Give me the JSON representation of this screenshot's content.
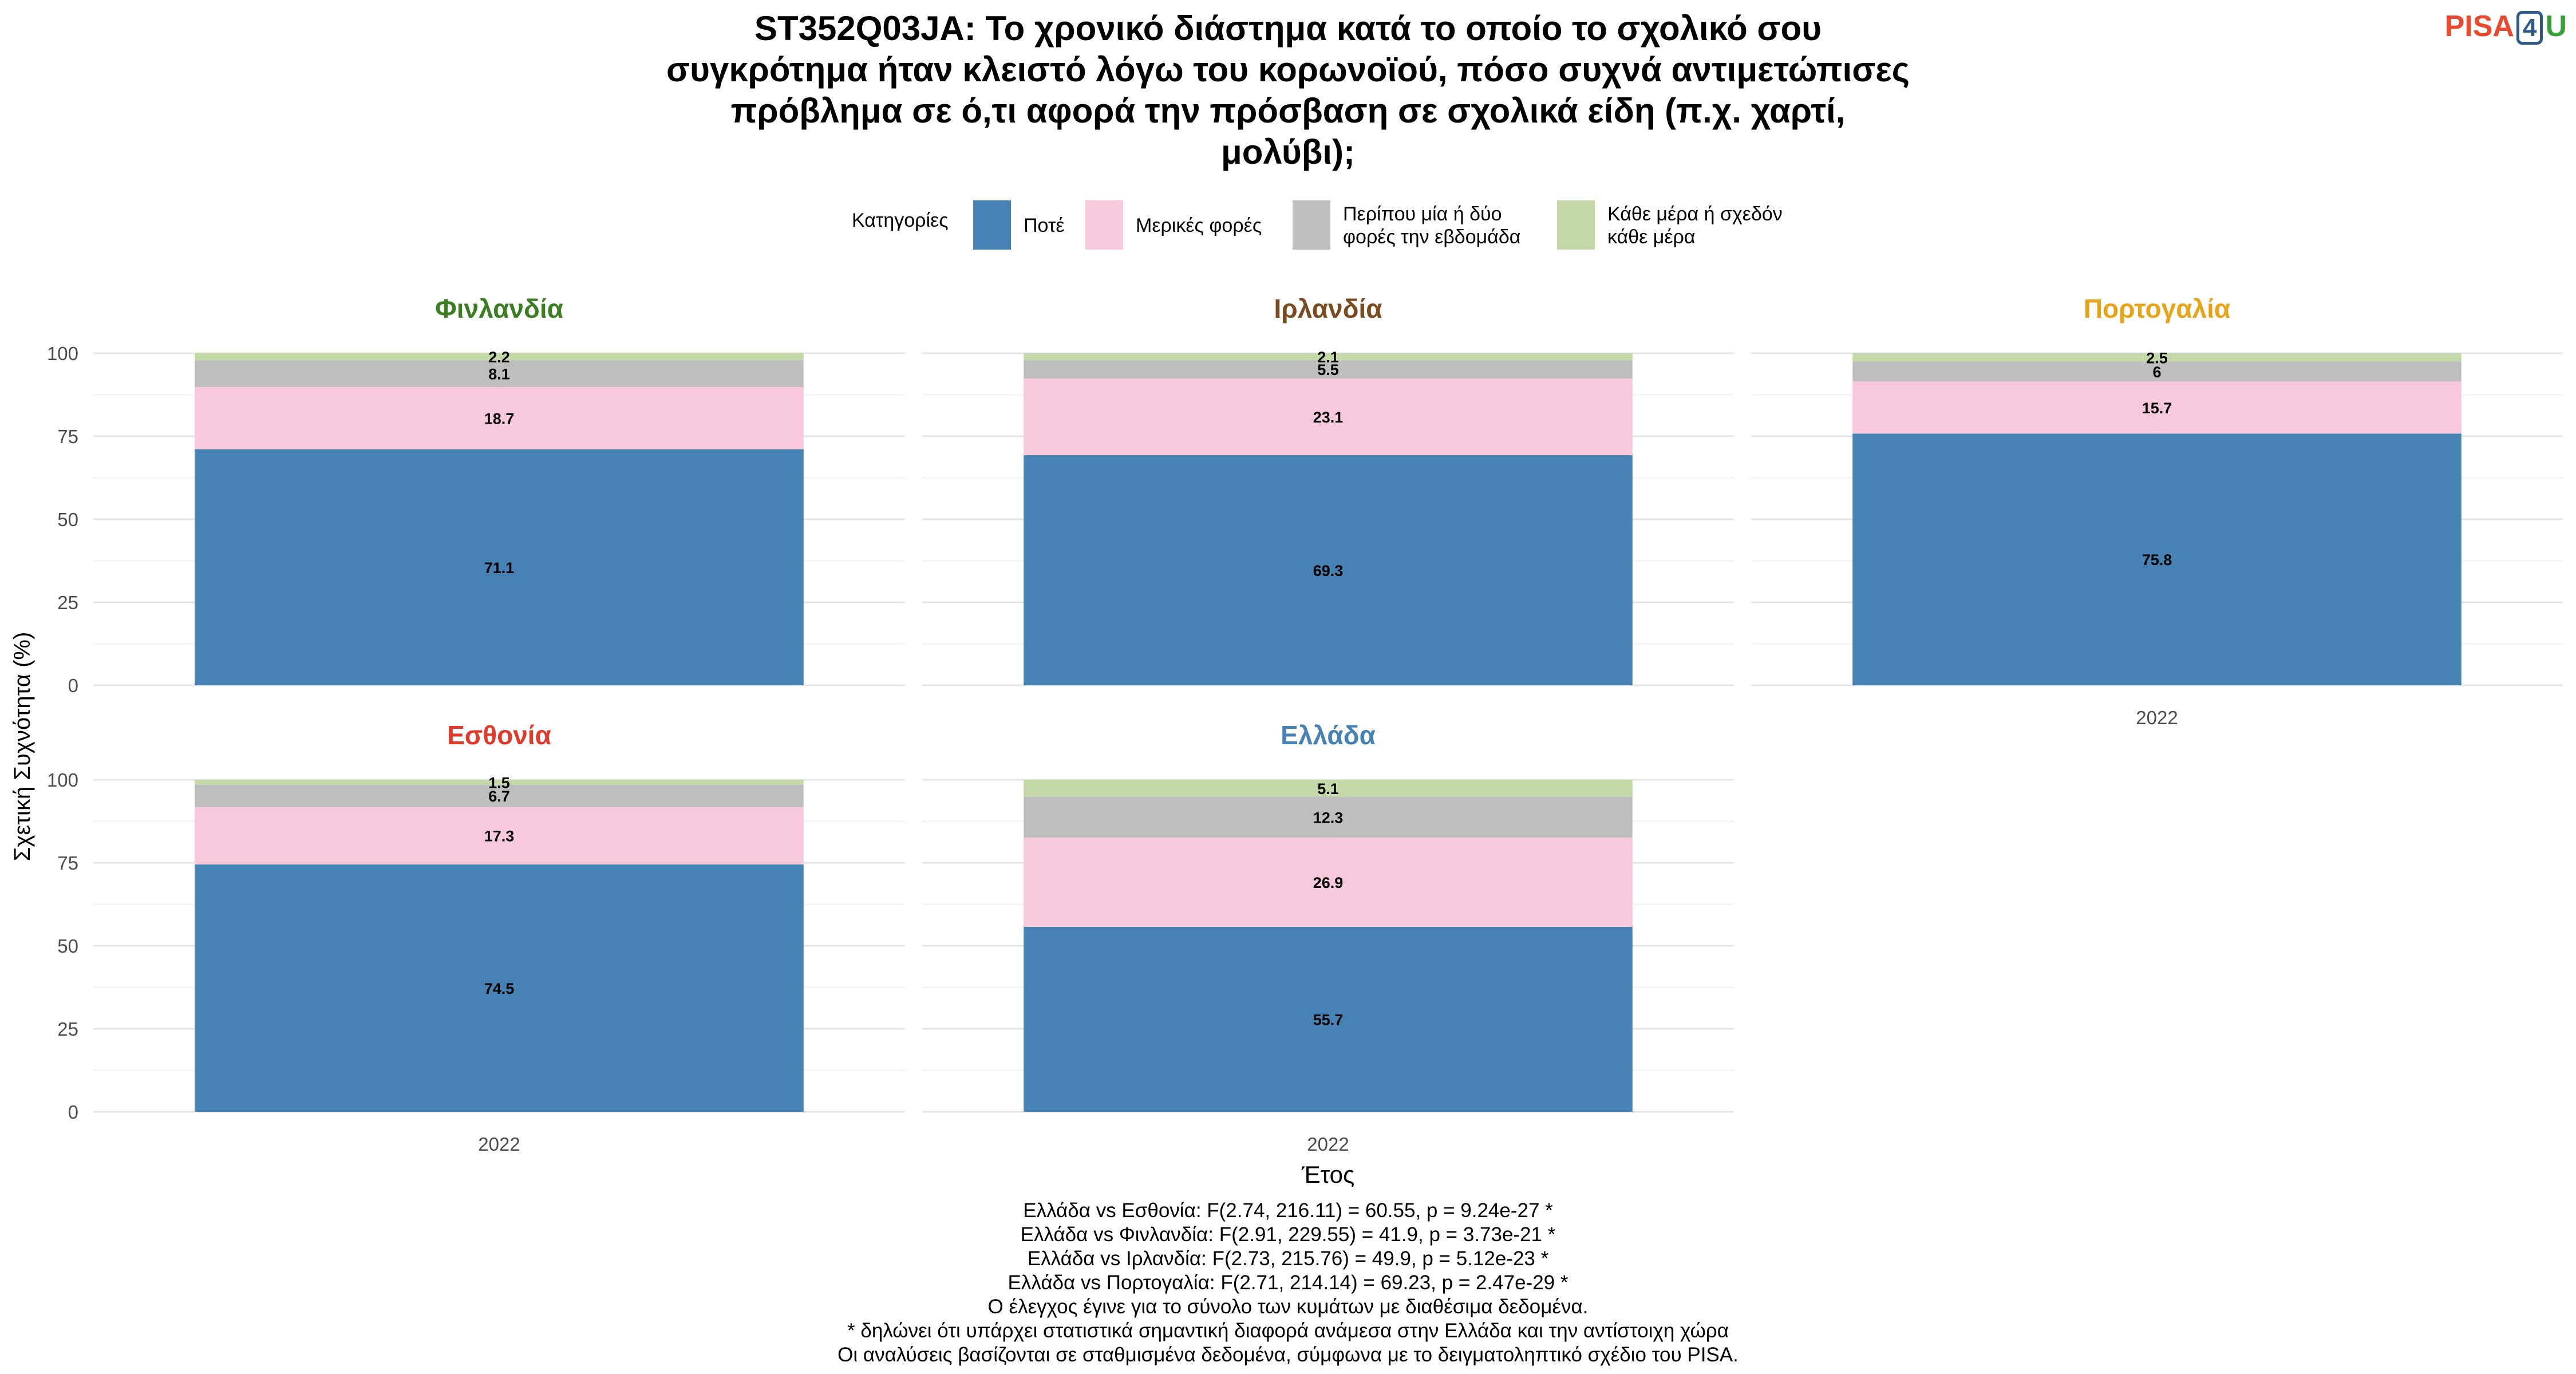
{
  "title_lines": [
    "ST352Q03JA: Το χρονικό διάστημα κατά το οποίο το σχολικό σου",
    "συγκρότημα ήταν κλειστό λόγω του κορωνοϊού, πόσο συχνά αντιμετώπισες",
    "πρόβλημα σε ό,τι αφορά την πρόσβαση σε σχολικά είδη (π.χ. χαρτί,",
    "μολύβι);"
  ],
  "logo": {
    "pisa": "PISA",
    "four": "4",
    "u": "U"
  },
  "legend": {
    "title": "Κατηγορίες",
    "items": [
      {
        "lines": [
          "Ποτέ"
        ],
        "color": "#4682B4"
      },
      {
        "lines": [
          "Μερικές φορές"
        ],
        "color": "#F8C8DC"
      },
      {
        "lines": [
          "Περίπου μία ή δύο",
          "φορές την εβδομάδα"
        ],
        "color": "#BEBEBE"
      },
      {
        "lines": [
          "Κάθε μέρα ή σχεδόν",
          "κάθε μέρα"
        ],
        "color": "#C5D9A8"
      }
    ]
  },
  "chart_data": {
    "type": "bar",
    "stacked": true,
    "ylabel": "Σχετική Συχνότητα (%)",
    "xlabel": "Έτος",
    "ylim": [
      0,
      100
    ],
    "yticks": [
      0,
      25,
      50,
      75,
      100
    ],
    "categories": [
      "2022"
    ],
    "series_names": [
      "Ποτέ",
      "Μερικές φορές",
      "Περίπου μία ή δύο φορές την εβδομάδα",
      "Κάθε μέρα ή σχεδόν κάθε μέρα"
    ],
    "panels": [
      {
        "name": "Φινλανδία",
        "color": "#3a7d22",
        "values": [
          71.1,
          18.7,
          8.1,
          2.2
        ],
        "labels": [
          "71.1",
          "18.7",
          "8.1",
          "2.2"
        ]
      },
      {
        "name": "Ιρλανδία",
        "color": "#7b4a1e",
        "values": [
          69.3,
          23.1,
          5.5,
          2.1
        ],
        "labels": [
          "69.3",
          "23.1",
          "5.5",
          "2.1"
        ]
      },
      {
        "name": "Πορτογαλία",
        "color": "#e8a317",
        "values": [
          75.8,
          15.7,
          6,
          2.5
        ],
        "labels": [
          "75.8",
          "15.7",
          "6",
          "2.5"
        ]
      },
      {
        "name": "Εσθονία",
        "color": "#e03a2a",
        "values": [
          74.5,
          17.3,
          6.7,
          1.5
        ],
        "labels": [
          "74.5",
          "17.3",
          "6.7",
          "1.5"
        ]
      },
      {
        "name": "Ελλάδα",
        "color": "#4682B4",
        "values": [
          55.7,
          26.9,
          12.3,
          5.1
        ],
        "labels": [
          "55.7",
          "26.9",
          "12.3",
          "5.1"
        ]
      }
    ]
  },
  "notes": [
    "Ελλάδα vs Εσθονία: F(2.74, 216.11) = 60.55, p = 9.24e-27 *",
    "Ελλάδα vs Φινλανδία: F(2.91, 229.55) = 41.9, p = 3.73e-21 *",
    "Ελλάδα vs Ιρλανδία: F(2.73, 215.76) = 49.9, p = 5.12e-23 *",
    "Ελλάδα vs Πορτογαλία: F(2.71, 214.14) = 69.23, p = 2.47e-29 *",
    "Ο έλεγχος έγινε για το σύνολο των κυμάτων με διαθέσιμα δεδομένα.",
    "* δηλώνει ότι υπάρχει στατιστικά σημαντική διαφορά ανάμεσα στην Ελλάδα και την αντίστοιχη χώρα",
    "Οι αναλύσεις βασίζονται σε σταθμισμένα δεδομένα, σύμφωνα με το δειγματοληπτικό σχέδιο του PISA."
  ]
}
